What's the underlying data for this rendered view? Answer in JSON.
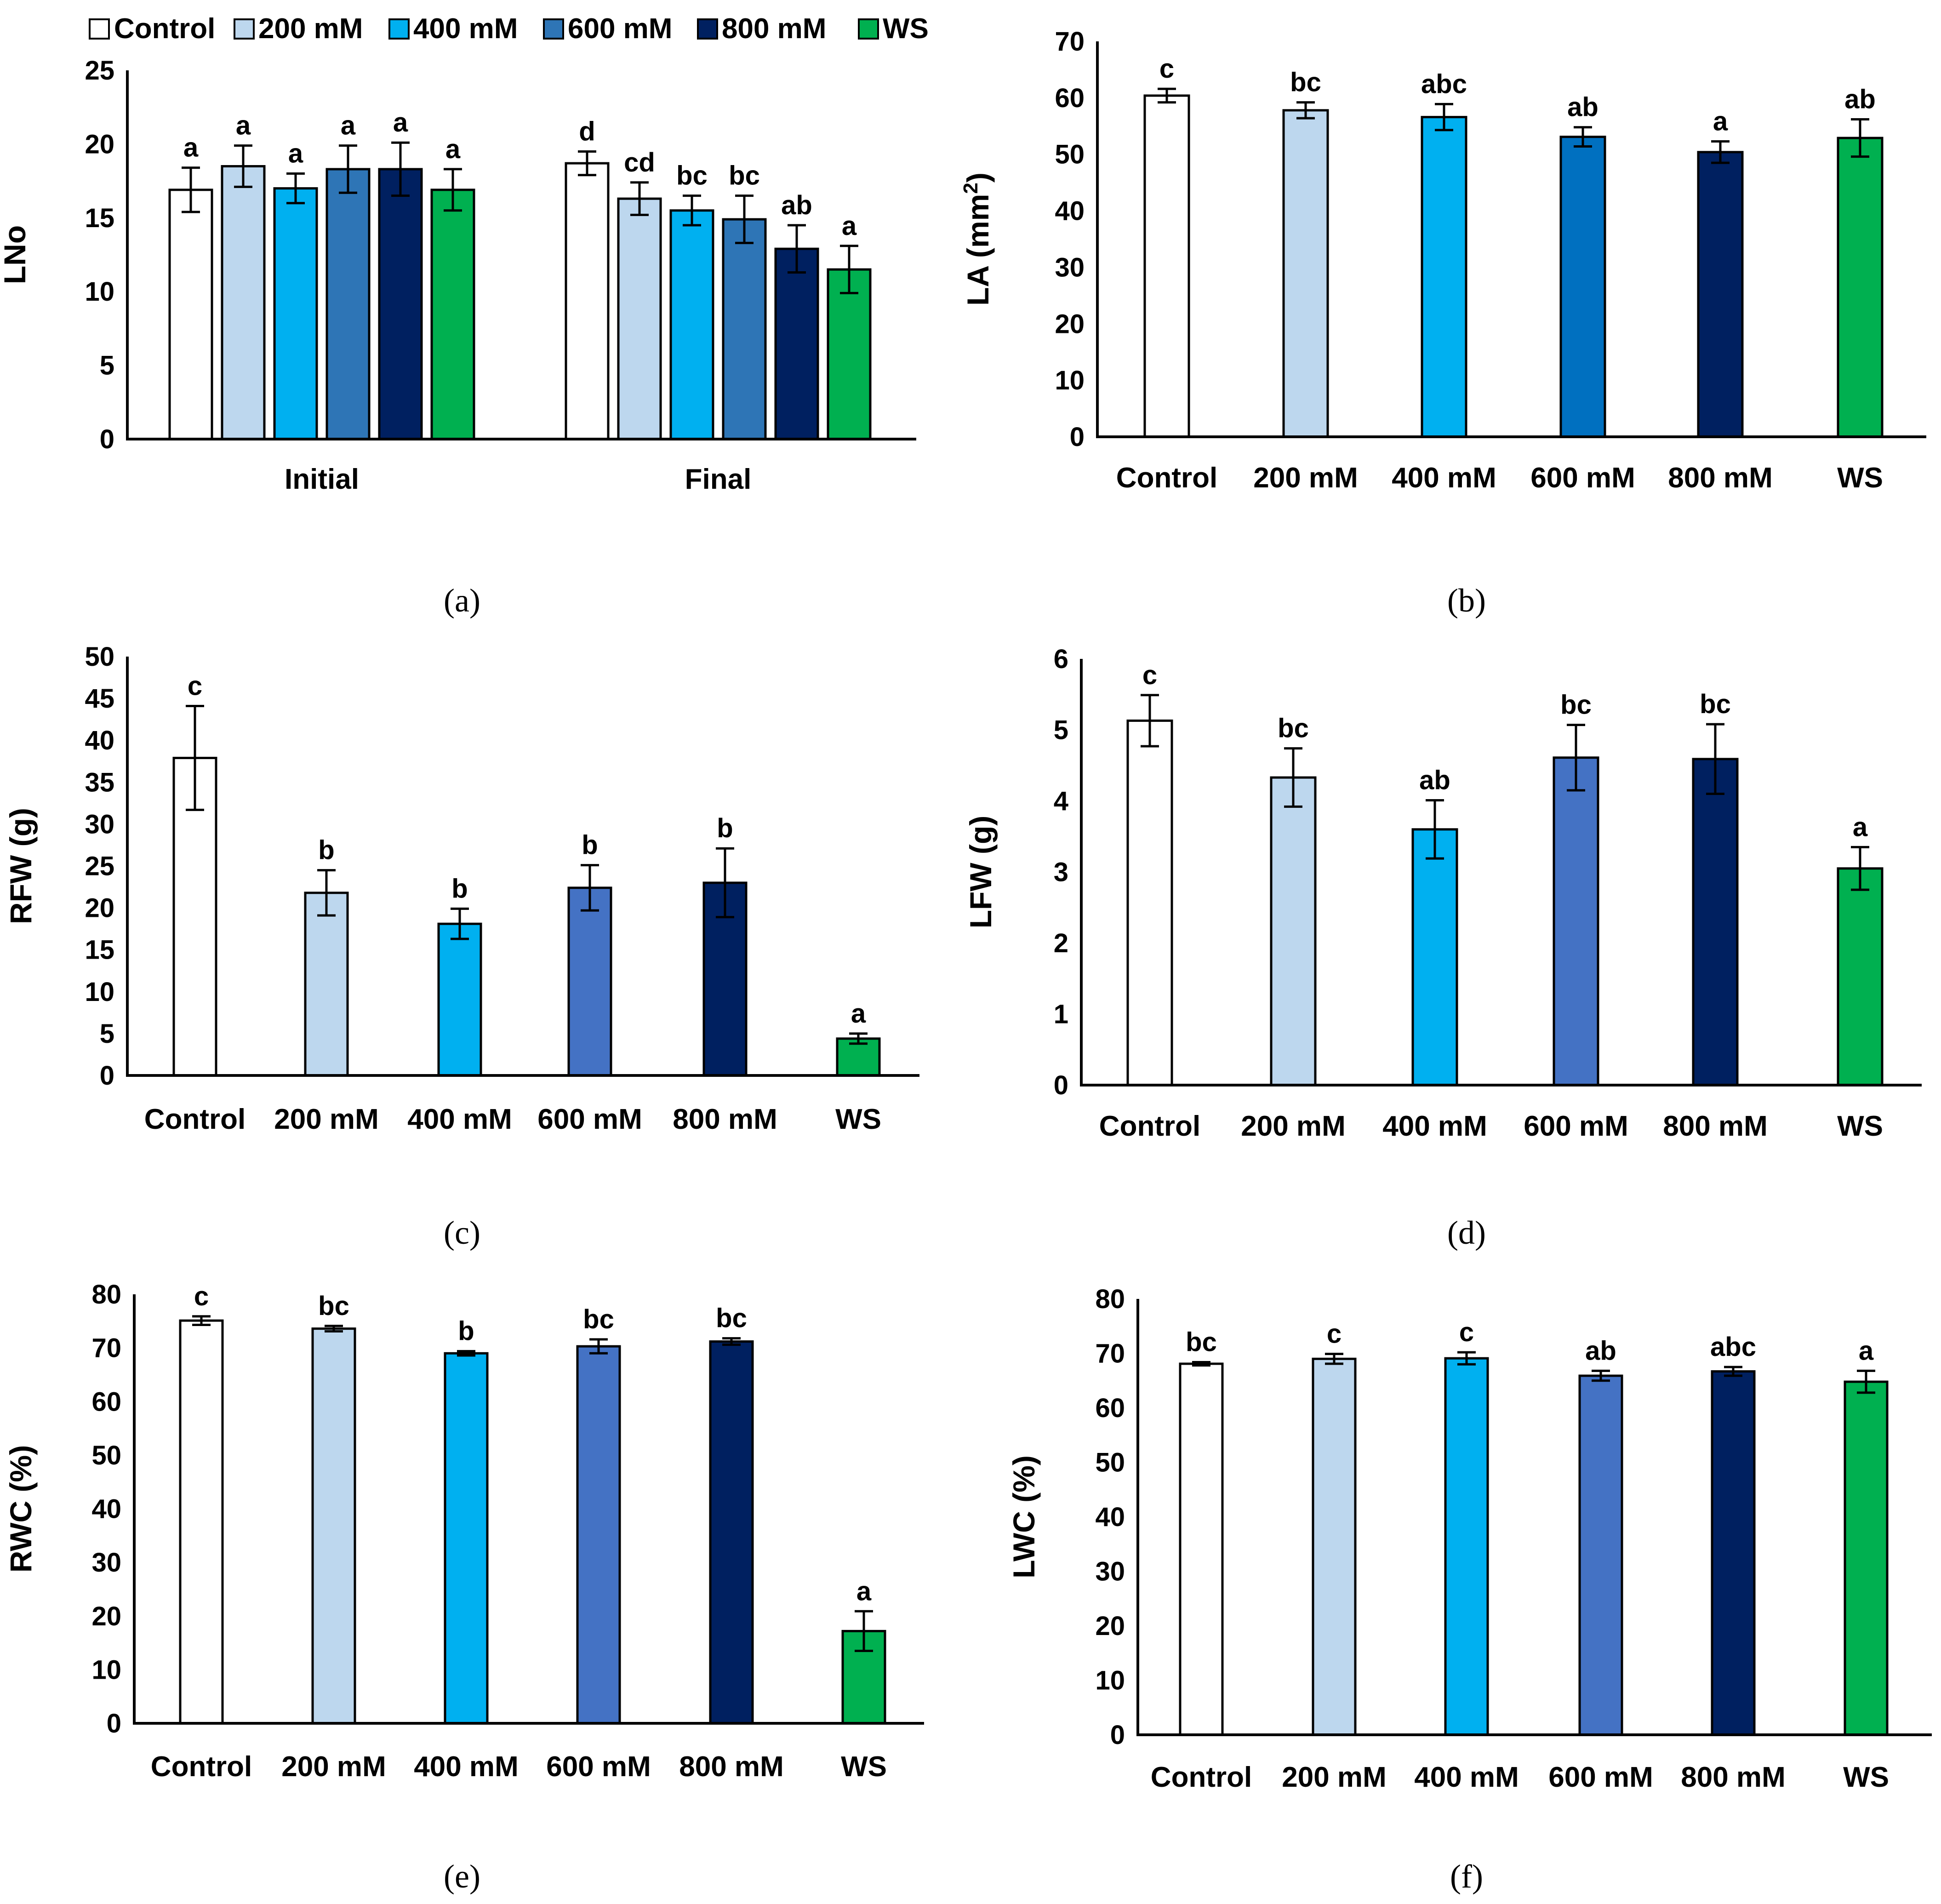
{
  "legend": [
    {
      "name": "Control",
      "color": "#ffffff"
    },
    {
      "name": "200 mM",
      "color": "#bdd7ee"
    },
    {
      "name": "400 mM",
      "color": "#00b0f0"
    },
    {
      "name": "600 mM",
      "color": "#2e75b6"
    },
    {
      "name": "800 mM",
      "color": "#002060"
    },
    {
      "name": "WS",
      "color": "#00b050"
    }
  ],
  "captions": [
    "(a)",
    "(b)",
    "(c)",
    "(d)",
    "(e)",
    "(f)"
  ],
  "chart_data": [
    {
      "id": "a",
      "type": "bar",
      "ylabel": "LNo",
      "ylim": [
        0,
        25
      ],
      "yticks": [
        0,
        5,
        10,
        15,
        20,
        25
      ],
      "groups": [
        "Initial",
        "Final"
      ],
      "series": [
        {
          "name": "Control",
          "color": "#ffffff",
          "values": [
            16.9,
            18.7
          ],
          "errors": [
            1.5,
            0.8
          ],
          "letters": [
            "a",
            "d"
          ]
        },
        {
          "name": "200 mM",
          "color": "#bdd7ee",
          "values": [
            18.5,
            16.3
          ],
          "errors": [
            1.4,
            1.1
          ],
          "letters": [
            "a",
            "cd"
          ]
        },
        {
          "name": "400 mM",
          "color": "#00b0f0",
          "values": [
            17.0,
            15.5
          ],
          "errors": [
            1.0,
            1.0
          ],
          "letters": [
            "a",
            "bc"
          ]
        },
        {
          "name": "600 mM",
          "color": "#2e75b6",
          "values": [
            18.3,
            14.9
          ],
          "errors": [
            1.6,
            1.6
          ],
          "letters": [
            "a",
            "bc"
          ]
        },
        {
          "name": "800 mM",
          "color": "#002060",
          "values": [
            18.3,
            12.9
          ],
          "errors": [
            1.8,
            1.6
          ],
          "letters": [
            "a",
            "ab"
          ]
        },
        {
          "name": "WS",
          "color": "#00b050",
          "values": [
            16.9,
            11.5
          ],
          "errors": [
            1.4,
            1.6
          ],
          "letters": [
            "a",
            "a"
          ]
        }
      ]
    },
    {
      "id": "b",
      "type": "bar",
      "ylabel": "LA (mm",
      "ylabel_sup": "2",
      "ylabel_end": ")",
      "ylim": [
        0,
        70
      ],
      "yticks": [
        0,
        10,
        20,
        30,
        40,
        50,
        60,
        70
      ],
      "categories": [
        "Control",
        "200 mM",
        "400 mM",
        "600 mM",
        "800 mM",
        "WS"
      ],
      "colors": [
        "#ffffff",
        "#bdd7ee",
        "#00b0f0",
        "#0070c0",
        "#002060",
        "#00b050"
      ],
      "values": [
        60.4,
        57.8,
        56.6,
        53.1,
        50.4,
        52.9
      ],
      "errors": [
        1.2,
        1.4,
        2.3,
        1.7,
        1.9,
        3.3
      ],
      "letters": [
        "c",
        "bc",
        "abc",
        "ab",
        "a",
        "ab"
      ]
    },
    {
      "id": "c",
      "type": "bar",
      "ylabel": "RFW (g)",
      "ylim": [
        0,
        50
      ],
      "yticks": [
        0,
        5,
        10,
        15,
        20,
        25,
        30,
        35,
        40,
        45,
        50
      ],
      "categories": [
        "Control",
        "200 mM",
        "400 mM",
        "600 mM",
        "800 mM",
        "WS"
      ],
      "colors": [
        "#ffffff",
        "#bdd7ee",
        "#00b0f0",
        "#4472c4",
        "#002060",
        "#00b050"
      ],
      "values": [
        37.9,
        21.8,
        18.1,
        22.4,
        23.0,
        4.4
      ],
      "errors": [
        6.2,
        2.7,
        1.8,
        2.7,
        4.1,
        0.6
      ],
      "letters": [
        "c",
        "b",
        "b",
        "b",
        "b",
        "a"
      ]
    },
    {
      "id": "d",
      "type": "bar",
      "ylabel": "LFW (g)",
      "ylim": [
        0,
        6
      ],
      "yticks": [
        0,
        1,
        2,
        3,
        4,
        5,
        6
      ],
      "categories": [
        "Control",
        "200 mM",
        "400 mM",
        "600 mM",
        "800 mM",
        "WS"
      ],
      "colors": [
        "#ffffff",
        "#bdd7ee",
        "#00b0f0",
        "#4472c4",
        "#002060",
        "#00b050"
      ],
      "values": [
        5.13,
        4.33,
        3.6,
        4.61,
        4.59,
        3.05
      ],
      "errors": [
        0.36,
        0.41,
        0.41,
        0.46,
        0.49,
        0.3
      ],
      "letters": [
        "c",
        "bc",
        "ab",
        "bc",
        "bc",
        "a"
      ]
    },
    {
      "id": "e",
      "type": "bar",
      "ylabel": "RWC (%)",
      "ylim": [
        0,
        80
      ],
      "yticks": [
        0,
        10,
        20,
        30,
        40,
        50,
        60,
        70,
        80
      ],
      "categories": [
        "Control",
        "200 mM",
        "400 mM",
        "600 mM",
        "800 mM",
        "WS"
      ],
      "colors": [
        "#ffffff",
        "#bdd7ee",
        "#00b0f0",
        "#4472c4",
        "#002060",
        "#00b050"
      ],
      "values": [
        75.1,
        73.6,
        69.0,
        70.3,
        71.2,
        17.2
      ],
      "errors": [
        0.8,
        0.5,
        0.4,
        1.3,
        0.6,
        3.7
      ],
      "letters": [
        "c",
        "bc",
        "b",
        "bc",
        "bc",
        "a"
      ]
    },
    {
      "id": "f",
      "type": "bar",
      "ylabel": "LWC (%)",
      "ylim": [
        0,
        80
      ],
      "yticks": [
        0,
        10,
        20,
        30,
        40,
        50,
        60,
        70,
        80
      ],
      "categories": [
        "Control",
        "200 mM",
        "400 mM",
        "600 mM",
        "800 mM",
        "WS"
      ],
      "colors": [
        "#ffffff",
        "#bdd7ee",
        "#00b0f0",
        "#4472c4",
        "#002060",
        "#00b050"
      ],
      "values": [
        68.1,
        69.0,
        69.1,
        65.9,
        66.7,
        64.8
      ],
      "errors": [
        0.3,
        0.9,
        1.1,
        0.9,
        0.8,
        2.0
      ],
      "letters": [
        "bc",
        "c",
        "c",
        "ab",
        "abc",
        "a"
      ]
    }
  ]
}
